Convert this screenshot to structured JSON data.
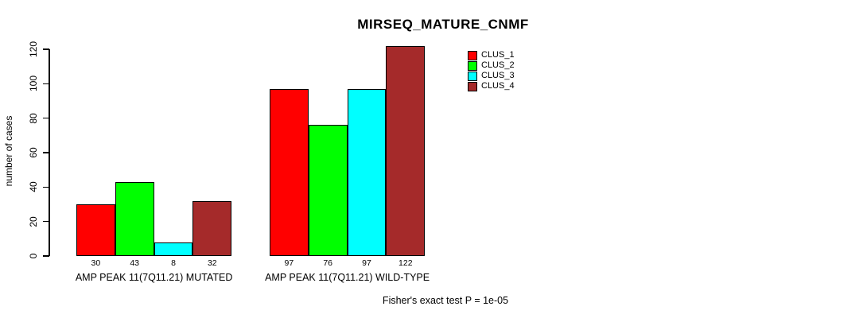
{
  "chart_data": {
    "type": "bar",
    "title": "MIRSEQ_MATURE_CNMF",
    "ylabel": "number of cases",
    "ylim": [
      0,
      120
    ],
    "yticks": [
      0,
      20,
      40,
      60,
      80,
      100,
      120
    ],
    "grid": false,
    "categories": [
      "AMP PEAK 11(7Q11.21) MUTATED",
      "AMP PEAK 11(7Q11.21) WILD-TYPE"
    ],
    "series": [
      {
        "name": "CLUS_1",
        "color": "#ff0000",
        "values": [
          30,
          97
        ]
      },
      {
        "name": "CLUS_2",
        "color": "#00ff00",
        "values": [
          43,
          76
        ]
      },
      {
        "name": "CLUS_3",
        "color": "#00ffff",
        "values": [
          8,
          97
        ]
      },
      {
        "name": "CLUS_4",
        "color": "#a52a2a",
        "values": [
          32,
          122
        ]
      }
    ],
    "bar_value_labels": [
      [
        "30",
        "43",
        "8",
        "32"
      ],
      [
        "97",
        "76",
        "97",
        "122"
      ]
    ],
    "legend": {
      "position": "top-right",
      "entries": [
        "CLUS_1",
        "CLUS_2",
        "CLUS_3",
        "CLUS_4"
      ]
    },
    "annotation": "Fisher's exact test P = 1e-05"
  }
}
